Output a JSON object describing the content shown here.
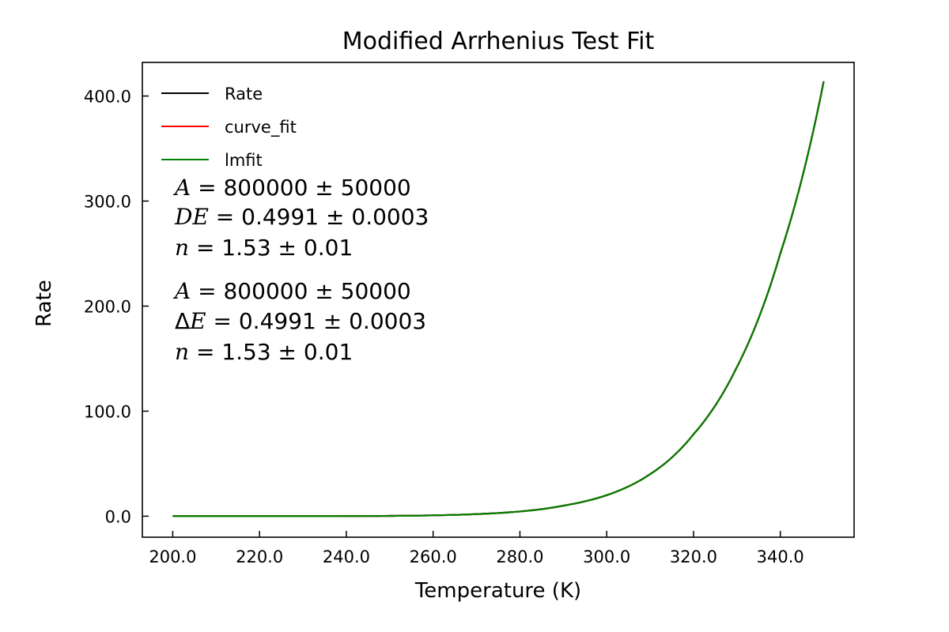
{
  "chart_data": {
    "type": "line",
    "title": "Modified Arrhenius Test Fit",
    "xlabel": "Temperature (K)",
    "ylabel": "Rate",
    "xlim": [
      193,
      357
    ],
    "ylim": [
      -20,
      432
    ],
    "x_ticks": [
      200,
      220,
      240,
      260,
      280,
      300,
      320,
      340
    ],
    "x_tick_labels": [
      "200.0",
      "220.0",
      "240.0",
      "260.0",
      "280.0",
      "300.0",
      "320.0",
      "340.0"
    ],
    "y_ticks": [
      0,
      100,
      200,
      300,
      400
    ],
    "y_tick_labels": [
      "0.0",
      "100.0",
      "200.0",
      "300.0",
      "400.0"
    ],
    "grid": false,
    "legend_position": "top-left",
    "x": [
      200,
      210,
      220,
      230,
      240,
      250,
      260,
      270,
      280,
      290,
      300,
      310,
      320,
      330,
      340,
      350
    ],
    "series": [
      {
        "name": "Rate",
        "color": "#000000",
        "values": [
          0.0,
          0.0,
          0.0,
          0.0,
          0.1,
          0.3,
          0.8,
          2.0,
          4.5,
          10.0,
          20.0,
          40.0,
          78.0,
          142.0,
          250.0,
          414.0
        ]
      },
      {
        "name": "curve_fit",
        "color": "#ff0000",
        "values": [
          0.0,
          0.0,
          0.0,
          0.0,
          0.1,
          0.3,
          0.8,
          2.0,
          4.5,
          10.0,
          20.0,
          40.0,
          78.0,
          142.0,
          250.0,
          414.0
        ]
      },
      {
        "name": "lmfit",
        "color": "#008000",
        "values": [
          0.0,
          0.0,
          0.0,
          0.0,
          0.1,
          0.3,
          0.8,
          2.0,
          4.5,
          10.0,
          20.0,
          40.0,
          78.0,
          142.0,
          250.0,
          414.0
        ]
      }
    ],
    "annotations": [
      {
        "lines": [
          {
            "var": "A",
            "expr": " = 800000 ± 50000"
          },
          {
            "var": "DE",
            "expr": " = 0.4991 ± 0.0003"
          },
          {
            "var": "n",
            "expr": " = 1.53 ± 0.01"
          }
        ]
      },
      {
        "lines": [
          {
            "prefix": "Δ",
            "var": "E",
            "expr": " = 0.4991 ± 0.0003",
            "first_var": "A",
            "first_expr": " = 800000 ± 50000"
          },
          {
            "var": "n",
            "expr": " = 1.53 ± 0.01"
          }
        ]
      }
    ]
  }
}
